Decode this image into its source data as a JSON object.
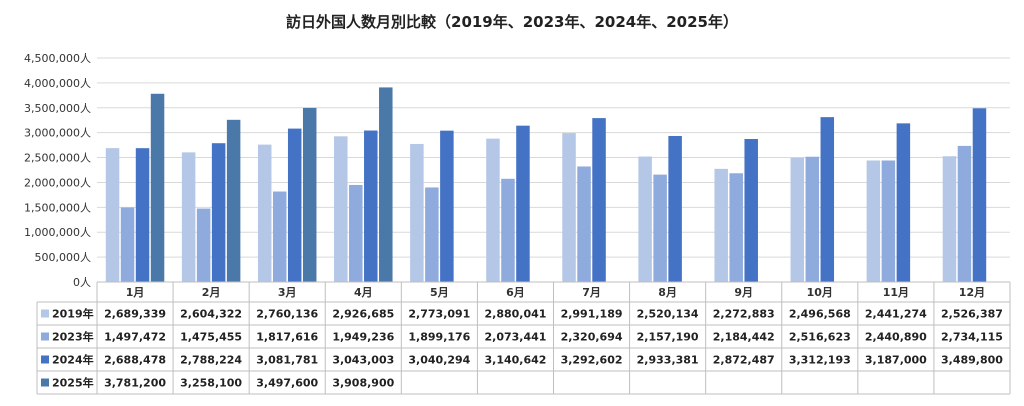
{
  "chart_data": {
    "type": "bar",
    "title": "訪日外国人数月別比較（2019年、2023年、2024年、2025年）",
    "categories": [
      "1月",
      "2月",
      "3月",
      "4月",
      "5月",
      "6月",
      "7月",
      "8月",
      "9月",
      "10月",
      "11月",
      "12月"
    ],
    "y_ticks": [
      "0人",
      "500,000人",
      "1,000,000人",
      "1,500,000人",
      "2,000,000人",
      "2,500,000人",
      "3,000,000人",
      "3,500,000人",
      "4,000,000人",
      "4,500,000人"
    ],
    "ylim": [
      0,
      4500000
    ],
    "grid": true,
    "legend": "data table below chart",
    "series": [
      {
        "name": "2019年",
        "color": "#b4c7e7",
        "values": [
          2689339,
          2604322,
          2760136,
          2926685,
          2773091,
          2880041,
          2991189,
          2520134,
          2272883,
          2496568,
          2441274,
          2526387
        ],
        "labels": [
          "2,689,339",
          "2,604,322",
          "2,760,136",
          "2,926,685",
          "2,773,091",
          "2,880,041",
          "2,991,189",
          "2,520,134",
          "2,272,883",
          "2,496,568",
          "2,441,274",
          "2,526,387"
        ]
      },
      {
        "name": "2023年",
        "color": "#8faadc",
        "values": [
          1497472,
          1475455,
          1817616,
          1949236,
          1899176,
          2073441,
          2320694,
          2157190,
          2184442,
          2516623,
          2440890,
          2734115
        ],
        "labels": [
          "1,497,472",
          "1,475,455",
          "1,817,616",
          "1,949,236",
          "1,899,176",
          "2,073,441",
          "2,320,694",
          "2,157,190",
          "2,184,442",
          "2,516,623",
          "2,440,890",
          "2,734,115"
        ]
      },
      {
        "name": "2024年",
        "color": "#4472c4",
        "values": [
          2688478,
          2788224,
          3081781,
          3043003,
          3040294,
          3140642,
          3292602,
          2933381,
          2872487,
          3312193,
          3187000,
          3489800
        ],
        "labels": [
          "2,688,478",
          "2,788,224",
          "3,081,781",
          "3,043,003",
          "3,040,294",
          "3,140,642",
          "3,292,602",
          "2,933,381",
          "2,872,487",
          "3,312,193",
          "3,187,000",
          "3,489,800"
        ]
      },
      {
        "name": "2025年",
        "color": "#4a78a8",
        "values": [
          3781200,
          3258100,
          3497600,
          3908900,
          null,
          null,
          null,
          null,
          null,
          null,
          null,
          null
        ],
        "labels": [
          "3,781,200",
          "3,258,100",
          "3,497,600",
          "3,908,900",
          "",
          "",
          "",
          "",
          "",
          "",
          "",
          ""
        ]
      }
    ]
  }
}
